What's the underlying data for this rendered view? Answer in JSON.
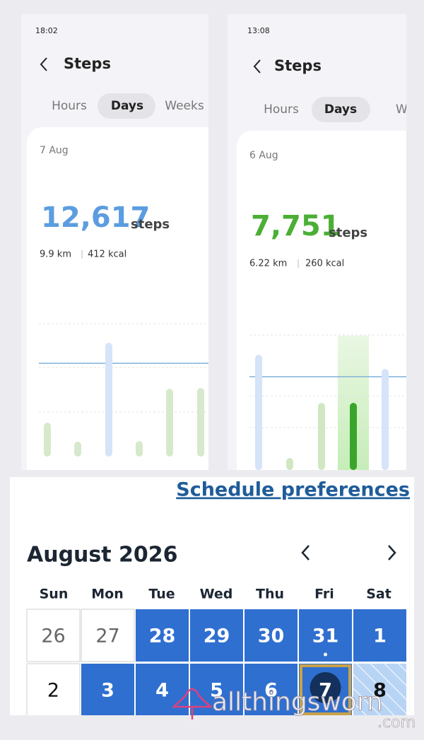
{
  "screens": [
    {
      "status_time": "18:02",
      "title": "Steps",
      "tabs": [
        "Hours",
        "Days",
        "Weeks"
      ],
      "date": "7 Aug",
      "steps": "12,617",
      "steps_unit": "steps",
      "distance": "9.9 km",
      "energy": "412 kcal"
    },
    {
      "status_time": "13:08",
      "title": "Steps",
      "tabs": [
        "Hours",
        "Days",
        "Weeks"
      ],
      "date": "6 Aug",
      "steps": "7,751",
      "steps_unit": "steps",
      "distance": "6.22 km",
      "energy": "260 kcal"
    }
  ],
  "calendar": {
    "link": "Schedule preferences",
    "month": "August 2026",
    "weekdays": [
      "Sun",
      "Mon",
      "Tue",
      "Wed",
      "Thu",
      "Fri",
      "Sat"
    ],
    "weeks": [
      [
        "26",
        "27",
        "28",
        "29",
        "30",
        "31",
        "1"
      ],
      [
        "2",
        "3",
        "4",
        "5",
        "6",
        "7",
        "8"
      ]
    ]
  },
  "watermark": {
    "name": "allthingsworn",
    "domain": ".com"
  }
}
